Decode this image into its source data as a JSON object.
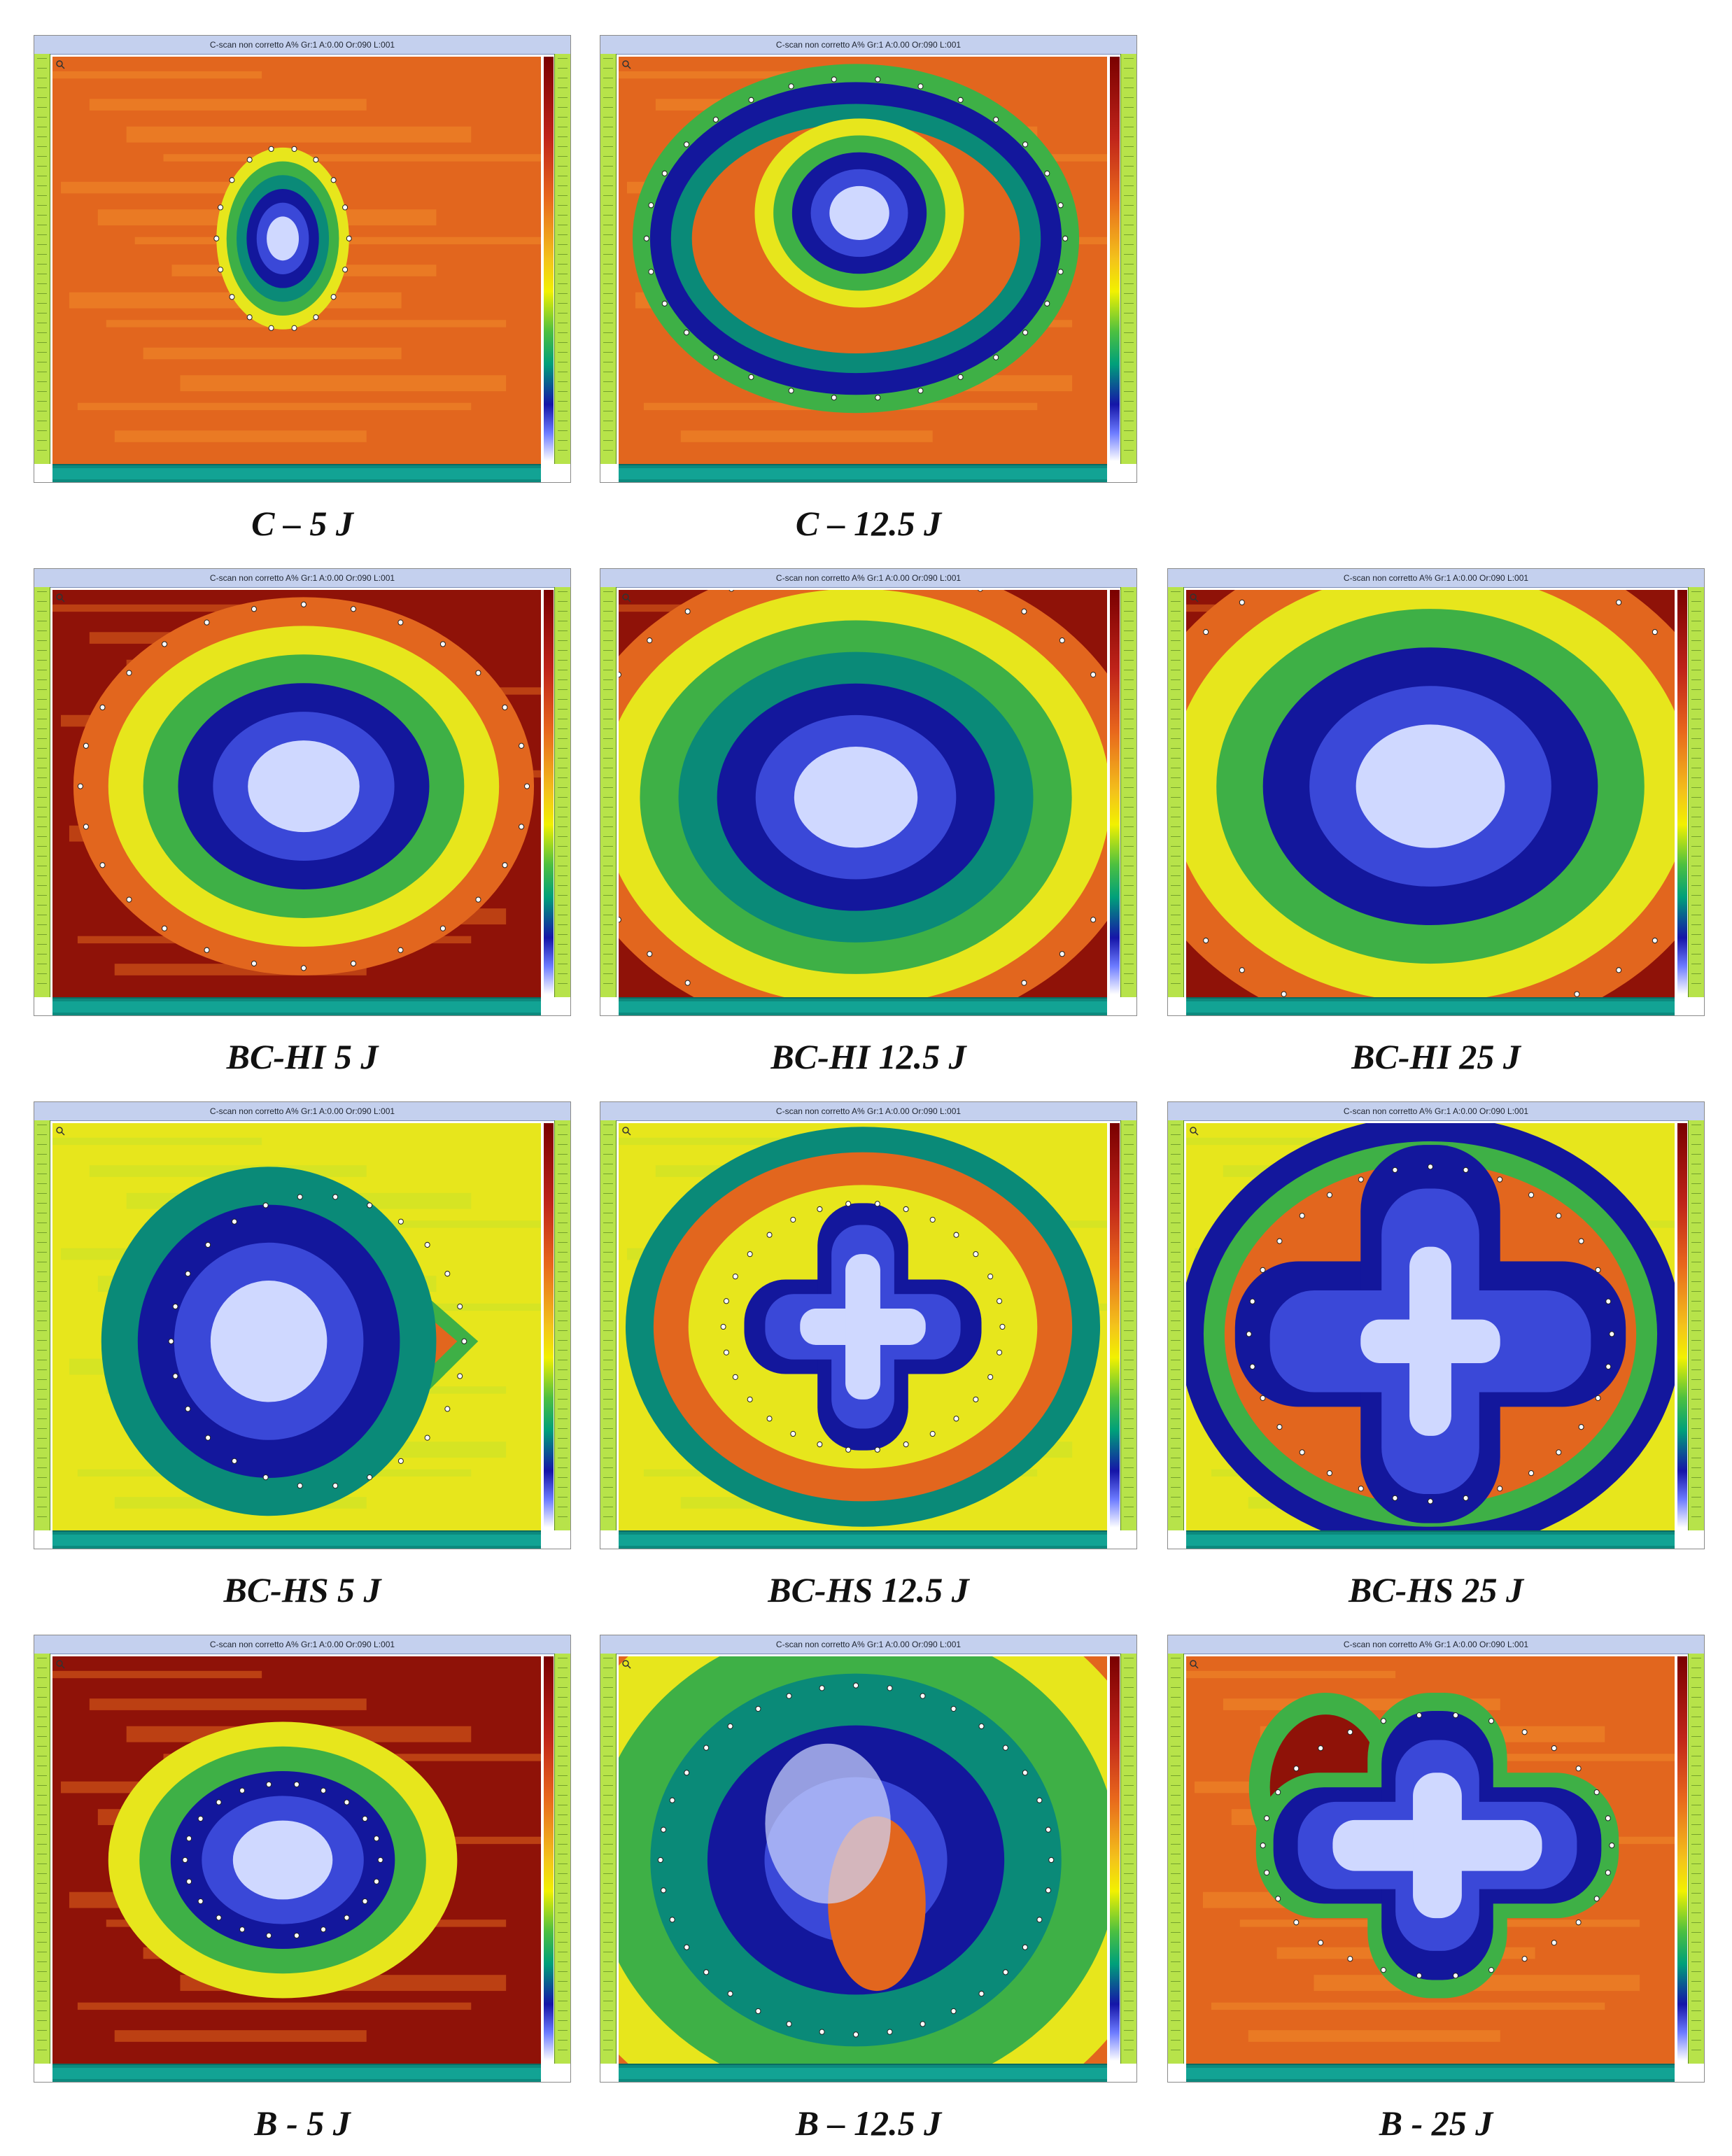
{
  "scan_title": "C-scan non corretto A% Gr:1 A:0.00 Or:090 L:001",
  "panels": [
    {
      "id": "c-5j",
      "caption": "C – 5 J",
      "background": "orange",
      "damage": "small"
    },
    {
      "id": "c-12-5j",
      "caption": "C – 12.5 J",
      "background": "orange",
      "damage": "ring"
    },
    {
      "id": "bc-hi-5j",
      "caption": "BC-HI 5 J",
      "background": "darkred",
      "damage": "round"
    },
    {
      "id": "bc-hi-12-5j",
      "caption": "BC-HI 12.5 J",
      "background": "darkred",
      "damage": "oval"
    },
    {
      "id": "bc-hi-25j",
      "caption": "BC-HI 25 J",
      "background": "darkred",
      "damage": "large"
    },
    {
      "id": "bc-hs-5j",
      "caption": "BC-HS 5 J",
      "background": "yellow",
      "damage": "diamond"
    },
    {
      "id": "bc-hs-12-5j",
      "caption": "BC-HS 12.5 J",
      "background": "yellow",
      "damage": "cross"
    },
    {
      "id": "bc-hs-25j",
      "caption": "BC-HS 25 J",
      "background": "yellow",
      "damage": "bigcross"
    },
    {
      "id": "b-5j",
      "caption": "B - 5 J",
      "background": "darkred",
      "damage": "small-blob"
    },
    {
      "id": "b-12-5j",
      "caption": "B – 12.5 J",
      "background": "darkred",
      "damage": "c-shape"
    },
    {
      "id": "b-25j",
      "caption": "B - 25 J",
      "background": "orange",
      "damage": "cross-blob"
    }
  ],
  "colors": {
    "darkred": "#8f1208",
    "orange": "#e2661e",
    "yellow": "#e7e61c",
    "green": "#3eb046",
    "teal": "#0a8a78",
    "navy": "#13179c",
    "blue": "#3a48d8",
    "light": "#cfd8ff"
  }
}
